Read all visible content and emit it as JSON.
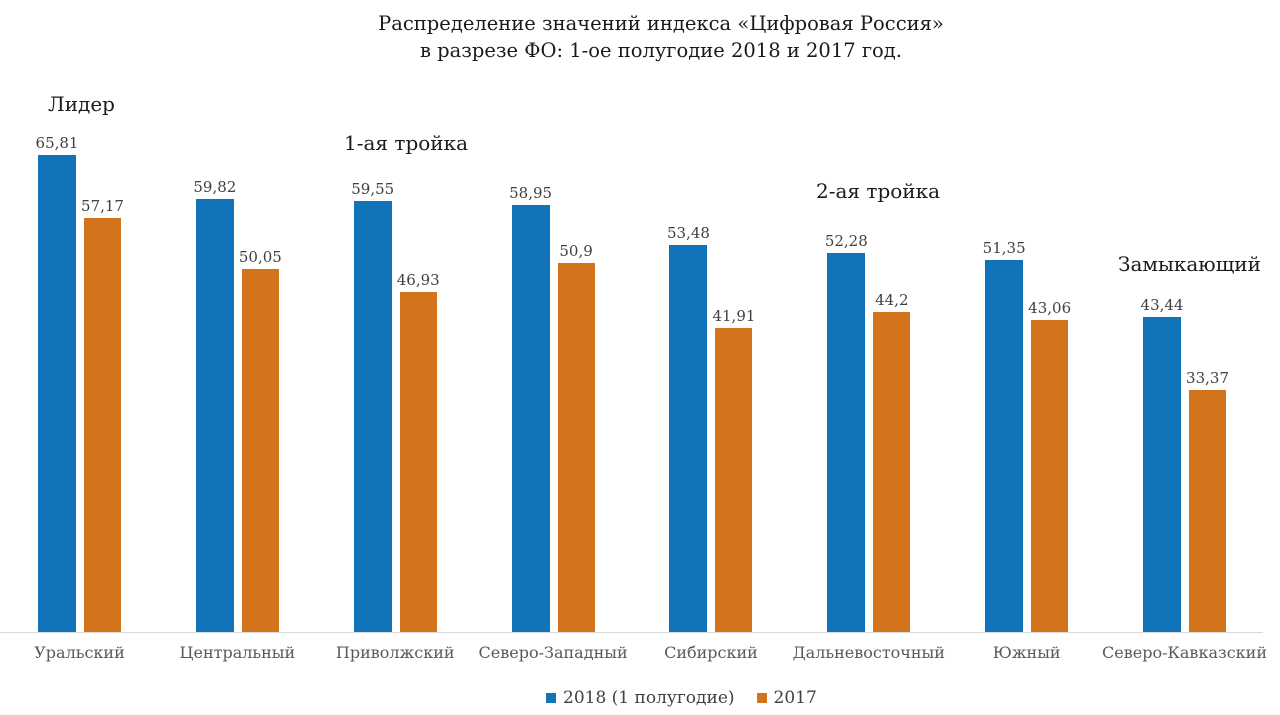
{
  "chart_data": {
    "type": "bar",
    "title_line1": "Распределение значений индекса «Цифровая Россия»",
    "title_line2": "в разрезе ФО: 1-ое полугодие 2018 и 2017 год.",
    "categories": [
      "Уральский",
      "Центральный",
      "Приволжский",
      "Северо-Западный",
      "Сибирский",
      "Дальневосточный",
      "Южный",
      "Северо-Кавказский"
    ],
    "series": [
      {
        "name": "2018 (1 полугодие)",
        "color": "#1274b8",
        "values": [
          65.81,
          59.82,
          59.55,
          58.95,
          53.48,
          52.28,
          51.35,
          43.44
        ],
        "labels": [
          "65,81",
          "59,82",
          "59,55",
          "58,95",
          "53,48",
          "52,28",
          "51,35",
          "43,44"
        ]
      },
      {
        "name": "2017",
        "color": "#d3741d",
        "values": [
          57.17,
          50.05,
          46.93,
          50.9,
          41.91,
          44.2,
          43.06,
          33.37
        ],
        "labels": [
          "57,17",
          "50,05",
          "46,93",
          "50,9",
          "41,91",
          "44,2",
          "43,06",
          "33,37"
        ]
      }
    ],
    "annotations": [
      {
        "text": "Лидер"
      },
      {
        "text": "1-ая тройка"
      },
      {
        "text": "2-ая тройка"
      },
      {
        "text": "Замыкающий"
      }
    ],
    "ylim": [
      0,
      70
    ],
    "grid": false,
    "legend_position": "bottom",
    "value_label_color": "#404040",
    "category_label_color": "#595959",
    "axis_line_color": "#d9d9d9"
  }
}
